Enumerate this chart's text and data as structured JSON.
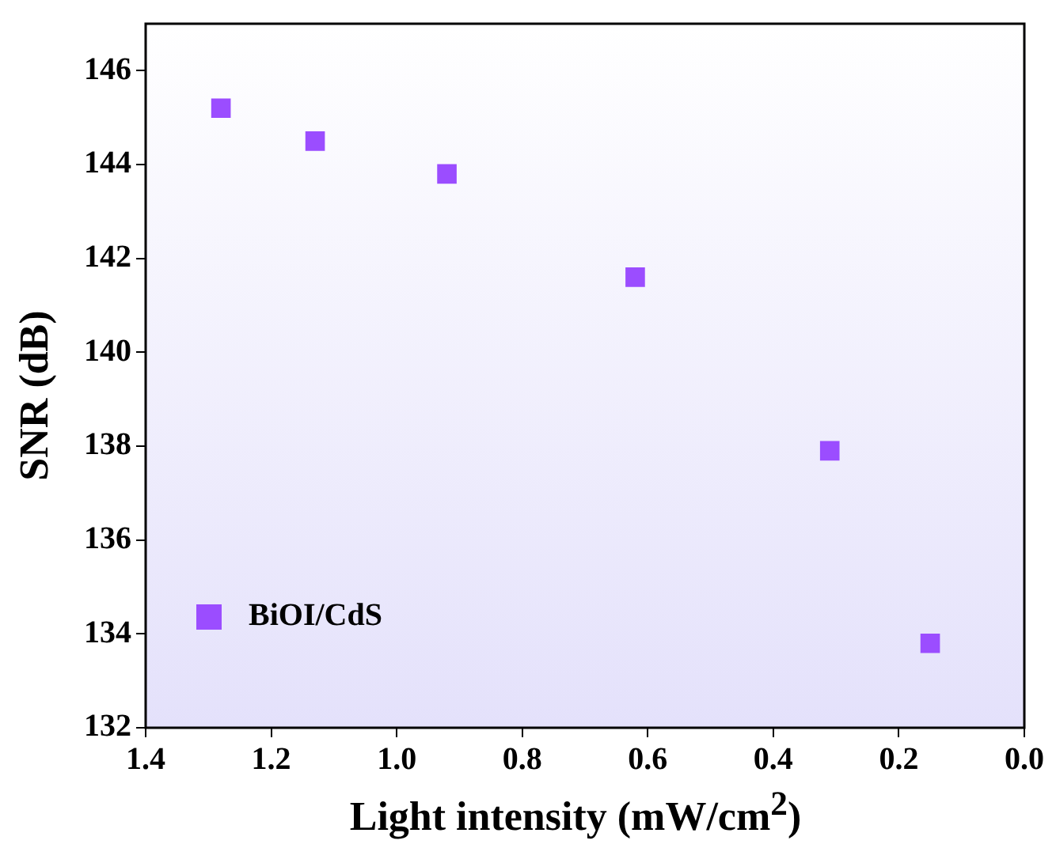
{
  "chart_data": {
    "type": "scatter",
    "xlabel": "Light intensity (mW/cm$^{2}$)",
    "ylabel": "SNR (dB)",
    "x": [
      1.28,
      1.13,
      0.92,
      0.62,
      0.31,
      0.15
    ],
    "series": [
      {
        "name": "BiOI/CdS",
        "color": "#9b4dff",
        "values": [
          145.2,
          144.5,
          143.8,
          141.6,
          137.9,
          133.8
        ]
      }
    ],
    "xlim": [
      1.4,
      0.0
    ],
    "xticks": [
      {
        "value": 1.4,
        "label": "1.4"
      },
      {
        "value": 1.2,
        "label": "1.2"
      },
      {
        "value": 1.0,
        "label": "1.0"
      },
      {
        "value": 0.8,
        "label": "0.8"
      },
      {
        "value": 0.6,
        "label": "0.6"
      },
      {
        "value": 0.4,
        "label": "0.4"
      },
      {
        "value": 0.2,
        "label": "0.2"
      },
      {
        "value": 0.0,
        "label": "0.0"
      }
    ],
    "ylim": [
      132,
      147
    ],
    "yticks": [
      132,
      134,
      136,
      138,
      140,
      142,
      144,
      146
    ],
    "grid": false,
    "legend": "bottom left",
    "marker": "square"
  }
}
